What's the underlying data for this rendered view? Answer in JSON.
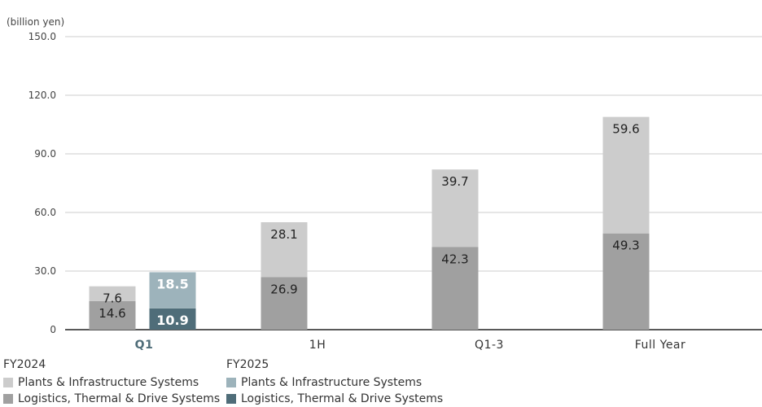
{
  "chart_data": {
    "type": "bar",
    "stacked": true,
    "unit_label": "(billion yen)",
    "y_ticks": [
      "150.0",
      "120.0",
      "90.0",
      "60.0",
      "30.0",
      "0"
    ],
    "ylim": [
      0,
      150
    ],
    "grid": true,
    "categories": [
      "Q1",
      "1H",
      "Q1-3",
      "Full Year"
    ],
    "highlight_category": "Q1",
    "groups": [
      {
        "name": "FY2024",
        "series": [
          {
            "name": "Logistics, Thermal & Drive Systems",
            "color": "#a0a0a0",
            "values": [
              14.6,
              26.9,
              42.3,
              49.3
            ],
            "labels": [
              "14.6",
              "26.9",
              "42.3",
              "49.3"
            ]
          },
          {
            "name": "Plants & Infrastructure Systems",
            "color": "#cccccc",
            "values": [
              7.6,
              28.1,
              39.7,
              59.6
            ],
            "labels": [
              "7.6",
              "28.1",
              "39.7",
              "59.6"
            ]
          }
        ]
      },
      {
        "name": "FY2025",
        "series": [
          {
            "name": "Logistics, Thermal & Drive Systems",
            "color": "#4f6d79",
            "values": [
              10.9,
              null,
              null,
              null
            ],
            "labels": [
              "10.9",
              null,
              null,
              null
            ]
          },
          {
            "name": "Plants & Infrastructure Systems",
            "color": "#9db3bb",
            "values": [
              18.5,
              null,
              null,
              null
            ],
            "labels": [
              "18.5",
              null,
              null,
              null
            ]
          }
        ]
      }
    ],
    "colors": {
      "q1_label": "#4f6d79",
      "grid": "#cccccc",
      "axis": "#222222",
      "text": "#333333"
    }
  },
  "legend": {
    "fy2024": {
      "title": "FY2024",
      "plants": "Plants & Infrastructure Systems",
      "logistics": "Logistics, Thermal & Drive Systems"
    },
    "fy2025": {
      "title": "FY2025",
      "plants": "Plants & Infrastructure Systems",
      "logistics": "Logistics, Thermal & Drive Systems"
    }
  }
}
